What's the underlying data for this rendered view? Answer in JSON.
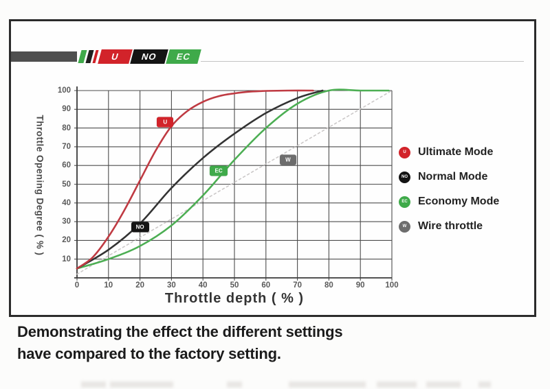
{
  "logo": {
    "bar_color": "#4f4f4f",
    "stripe_colors": [
      "#3faa4a",
      "#1f1f1f",
      "#cf2027"
    ],
    "segments": [
      {
        "label": "U",
        "bg": "#d2232a",
        "fg": "#ffffff"
      },
      {
        "label": "NO",
        "bg": "#141414",
        "fg": "#ffffff"
      },
      {
        "label": "EC",
        "bg": "#3faa4a",
        "fg": "#f2fbf2"
      }
    ]
  },
  "chart_data": {
    "type": "line",
    "title": "",
    "xlabel": "Throttle depth ( % )",
    "ylabel": "Throttle Opening Degree ( % )",
    "xlim": [
      0,
      100
    ],
    "ylim": [
      0,
      100
    ],
    "x_ticks": [
      0,
      10,
      20,
      30,
      40,
      50,
      60,
      70,
      80,
      90,
      100
    ],
    "y_ticks": [
      10,
      20,
      30,
      40,
      50,
      60,
      70,
      80,
      90,
      100
    ],
    "grid": true,
    "legend_position": "right-outside",
    "series": [
      {
        "name": "Ultimate Mode",
        "badge": "U",
        "color": "#bf3a42",
        "badge_color": "#d2232a",
        "line_style": "solid",
        "badge_at": [
          28,
          83
        ],
        "points": [
          [
            0,
            5
          ],
          [
            5,
            11
          ],
          [
            10,
            22
          ],
          [
            15,
            36
          ],
          [
            20,
            52
          ],
          [
            25,
            68
          ],
          [
            30,
            81
          ],
          [
            35,
            89
          ],
          [
            40,
            94
          ],
          [
            45,
            97
          ],
          [
            50,
            98.5
          ],
          [
            55,
            99.4
          ],
          [
            60,
            99.8
          ],
          [
            67,
            100
          ],
          [
            75,
            100
          ]
        ]
      },
      {
        "name": "Normal Mode",
        "badge": "NO",
        "color": "#333333",
        "badge_color": "#141414",
        "line_style": "solid",
        "badge_at": [
          20,
          27
        ],
        "points": [
          [
            0,
            5
          ],
          [
            10,
            15
          ],
          [
            20,
            29
          ],
          [
            30,
            48
          ],
          [
            40,
            64
          ],
          [
            50,
            77
          ],
          [
            60,
            88
          ],
          [
            70,
            96
          ],
          [
            78,
            100
          ]
        ]
      },
      {
        "name": "Economy Mode",
        "badge": "EC",
        "color": "#4cae53",
        "badge_color": "#3faa4a",
        "line_style": "solid",
        "badge_at": [
          45,
          57
        ],
        "points": [
          [
            0,
            5
          ],
          [
            10,
            10
          ],
          [
            20,
            17
          ],
          [
            30,
            28
          ],
          [
            40,
            44
          ],
          [
            50,
            63
          ],
          [
            60,
            80
          ],
          [
            70,
            93
          ],
          [
            80,
            100
          ],
          [
            90,
            100
          ],
          [
            99,
            100
          ]
        ]
      },
      {
        "name": "Wire throttle",
        "badge": "W",
        "color": "#cbc8c8",
        "badge_color": "#6d6d6d",
        "line_style": "dotted",
        "badge_at": [
          67,
          63
        ],
        "points": [
          [
            0,
            2
          ],
          [
            100,
            100
          ]
        ]
      }
    ]
  },
  "caption": {
    "line1": "Demonstrating the effect the different settings",
    "line2": "have compared to the factory setting."
  }
}
